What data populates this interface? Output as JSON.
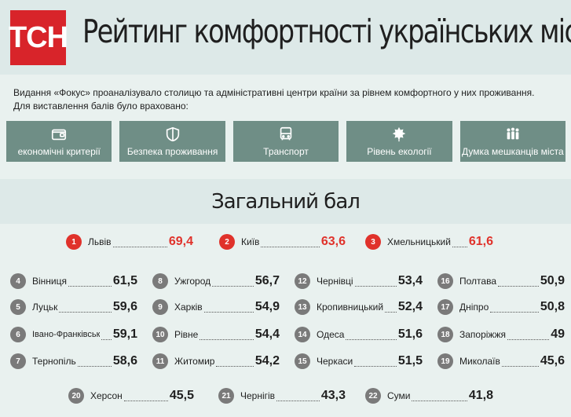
{
  "header": {
    "logo": "ТСН",
    "title": "Рейтинг комфортності українських міст"
  },
  "intro": {
    "line1": "Видання «Фокус» проаналізувало столицю та адміністративні центри країни за рівнем комфортного у них проживання.",
    "line2": "Для виставлення балів було враховано:"
  },
  "criteria": [
    {
      "label": "економічні критерії",
      "icon": "wallet-icon"
    },
    {
      "label": "Безпека проживання",
      "icon": "shield-icon"
    },
    {
      "label": "Транспорт",
      "icon": "bus-icon"
    },
    {
      "label": "Рівень екології",
      "icon": "leaf-icon"
    },
    {
      "label": "Думка мешканців міста",
      "icon": "people-icon"
    }
  ],
  "score_title": "Загальний бал",
  "colors": {
    "accent": "#e0322b",
    "badge": "#7a7a7a",
    "criteria_bg": "#6f8e86"
  },
  "ranking": [
    {
      "rank": "1",
      "city": "Львів",
      "score": "69,4"
    },
    {
      "rank": "2",
      "city": "Київ",
      "score": "63,6"
    },
    {
      "rank": "3",
      "city": "Хмельницький",
      "score": "61,6"
    },
    {
      "rank": "4",
      "city": "Вінниця",
      "score": "61,5"
    },
    {
      "rank": "5",
      "city": "Луцьк",
      "score": "59,6"
    },
    {
      "rank": "6",
      "city": "Івано-Франківськ",
      "score": "59,1"
    },
    {
      "rank": "7",
      "city": "Тернопіль",
      "score": "58,6"
    },
    {
      "rank": "8",
      "city": "Ужгород",
      "score": "56,7"
    },
    {
      "rank": "9",
      "city": "Харків",
      "score": "54,9"
    },
    {
      "rank": "10",
      "city": "Рівне",
      "score": "54,4"
    },
    {
      "rank": "11",
      "city": "Житомир",
      "score": "54,2"
    },
    {
      "rank": "12",
      "city": "Чернівці",
      "score": "53,4"
    },
    {
      "rank": "13",
      "city": "Кропивницький",
      "score": "52,4"
    },
    {
      "rank": "14",
      "city": "Одеса",
      "score": "51,6"
    },
    {
      "rank": "15",
      "city": "Черкаси",
      "score": "51,5"
    },
    {
      "rank": "16",
      "city": "Полтава",
      "score": "50,9"
    },
    {
      "rank": "17",
      "city": "Дніпро",
      "score": "50,8"
    },
    {
      "rank": "18",
      "city": "Запоріжжя",
      "score": "49"
    },
    {
      "rank": "19",
      "city": "Миколаїв",
      "score": "45,6"
    },
    {
      "rank": "20",
      "city": "Херсон",
      "score": "45,5"
    },
    {
      "rank": "21",
      "city": "Чернігів",
      "score": "43,3"
    },
    {
      "rank": "22",
      "city": "Суми",
      "score": "41,8"
    }
  ]
}
